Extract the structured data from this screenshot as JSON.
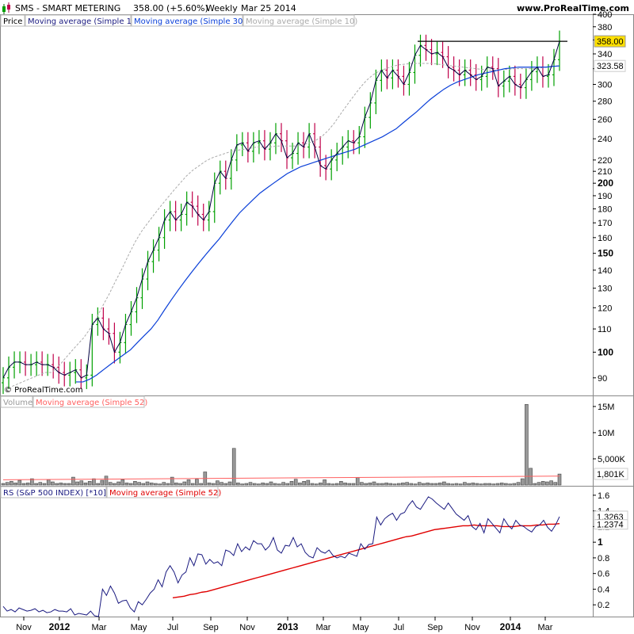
{
  "header": {
    "symbol": "SMS - SMART METERING",
    "last": "358.00 (+5.60%)",
    "period": "Weekly",
    "date": "Mar 25 2014",
    "site": "www.ProRealTime.com",
    "copyright": "© ProRealTime.com"
  },
  "colors": {
    "up_bar": "#00a000",
    "down_bar": "#c0004a",
    "close_line": "#000040",
    "ma30": "#0a3fd8",
    "ma10": "#aaaaaa",
    "volume_ma": "#ff6060",
    "rs_line": "#1a1a80",
    "rs_ma": "#e00000"
  },
  "chart_data": [
    {
      "type": "line",
      "panel": "Price",
      "legend": [
        "Price",
        "Moving average (Simple 1)",
        "Moving average (Simple 30)",
        "Moving average (Simple 10)"
      ],
      "y_scale": "log",
      "ylim": [
        84,
        400
      ],
      "y_ticks": [
        "400",
        "380",
        "360",
        "340",
        "320",
        "300",
        "280",
        "260",
        "240",
        "220",
        "210",
        "200",
        "190",
        "180",
        "170",
        "160",
        "150",
        "140",
        "130",
        "120",
        "110",
        "100",
        "90"
      ],
      "bold_ticks": [
        "200",
        "150",
        "100"
      ],
      "last_price": "358.00",
      "ma30_label": "323.58",
      "resistance_level": 358,
      "x_labels": [
        "Nov",
        "2012",
        "Mar",
        "May",
        "Jul",
        "Sep",
        "Nov",
        "2013",
        "Mar",
        "May",
        "Jul",
        "Sep",
        "Nov",
        "2014",
        "Mar"
      ],
      "close": [
        90,
        94,
        96,
        96,
        95,
        95,
        96,
        95,
        95,
        94,
        92,
        91,
        92,
        93,
        90,
        91,
        112,
        115,
        110,
        108,
        100,
        104,
        112,
        118,
        125,
        135,
        145,
        152,
        160,
        172,
        178,
        172,
        176,
        185,
        182,
        176,
        172,
        178,
        200,
        210,
        204,
        220,
        234,
        236,
        228,
        236,
        238,
        230,
        236,
        245,
        238,
        222,
        226,
        236,
        232,
        245,
        232,
        215,
        212,
        220,
        226,
        232,
        238,
        236,
        242,
        262,
        278,
        305,
        318,
        308,
        318,
        310,
        300,
        315,
        338,
        352,
        346,
        340,
        342,
        336,
        322,
        318,
        312,
        318,
        312,
        306,
        310,
        322,
        320,
        298,
        304,
        310,
        300,
        296,
        306,
        316,
        322,
        310,
        312,
        332,
        358
      ],
      "ma30": [
        88.5,
        88.5,
        89.5,
        91,
        93,
        95,
        97,
        99,
        101,
        104,
        107,
        110,
        114,
        119,
        124,
        129,
        134,
        139,
        144,
        149,
        154,
        159,
        165,
        171,
        177,
        182,
        187,
        192,
        196,
        200,
        204,
        208,
        211,
        214,
        216,
        218,
        220,
        222,
        224,
        226,
        228,
        230,
        233,
        236,
        239,
        242,
        246,
        250,
        256,
        262,
        268,
        275,
        282,
        288,
        294,
        299,
        303,
        306,
        309,
        312,
        314,
        316,
        318,
        320,
        321,
        322,
        322,
        322,
        322,
        322,
        323,
        323.58
      ],
      "ma10": [
        85,
        87,
        88,
        89,
        90,
        91,
        92,
        92,
        94,
        97,
        100,
        103,
        106,
        110,
        115,
        121,
        127,
        134,
        141,
        149,
        157,
        164,
        170,
        176,
        182,
        188,
        194,
        200,
        206,
        211,
        215,
        219,
        222,
        224,
        226,
        228,
        229,
        230,
        231,
        232,
        232,
        232,
        233,
        233,
        233,
        233,
        234,
        236,
        238,
        242,
        248,
        256,
        266,
        276,
        286,
        296,
        305,
        312,
        317,
        320,
        323,
        325,
        326,
        327,
        327,
        327,
        327,
        326,
        325,
        324,
        323,
        322,
        321,
        320,
        319,
        318,
        318,
        319,
        319,
        320,
        320,
        320,
        320,
        321,
        322,
        323,
        324
      ]
    },
    {
      "type": "bar",
      "panel": "Volume",
      "legend": [
        "Volume",
        "Moving average (Simple 52)"
      ],
      "y_ticks": [
        "15M",
        "10M",
        "5,000K"
      ],
      "ylim": [
        0,
        16500000
      ],
      "last_ma": "1,801K",
      "values": [
        300000,
        500000,
        700000,
        400000,
        900000,
        300000,
        400000,
        1200000,
        300000,
        500000,
        300000,
        1000000,
        600000,
        300000,
        400000,
        300000,
        300000,
        1500000,
        600000,
        800000,
        400000,
        700000,
        1200000,
        300000,
        900000,
        1700000,
        500000,
        300000,
        600000,
        1000000,
        400000,
        300000,
        700000,
        500000,
        300000,
        600000,
        400000,
        300000,
        200000,
        500000,
        300000,
        1500000,
        400000,
        300000,
        600000,
        1000000,
        300000,
        1100000,
        300000,
        2500000,
        400000,
        300000,
        800000,
        500000,
        300000,
        600000,
        7000000,
        400000,
        200000,
        300000,
        500000,
        300000,
        200000,
        400000,
        300000,
        600000,
        300000,
        200000,
        500000,
        300000,
        700000,
        1100000,
        400000,
        700000,
        900000,
        300000,
        200000,
        400000,
        1000000,
        300000,
        200000,
        300000,
        700000,
        400000,
        300000,
        300000,
        1400000,
        500000,
        300000,
        400000,
        600000,
        300000,
        300000,
        400000,
        300000,
        200000,
        300000,
        400000,
        500000,
        300000,
        200000,
        500000,
        300000,
        400000,
        300000,
        300000,
        400000,
        600000,
        300000,
        200000,
        300000,
        200000,
        500000,
        300000,
        400000,
        300000,
        200000,
        300000,
        300000,
        200000,
        300000,
        400000,
        300000,
        200000,
        300000,
        500000,
        1200000,
        15400000,
        3200000,
        300000,
        500000,
        700000,
        600000,
        800000,
        500000,
        2100000
      ]
    },
    {
      "type": "line",
      "panel": "RS",
      "legend": [
        "RS (S&P 500 INDEX) [*10]",
        "Moving average (Simple 52)"
      ],
      "y_ticks": [
        "1.6",
        "1.4",
        "1.2",
        "1",
        "0.8",
        "0.6",
        "0.4",
        "0.2"
      ],
      "ylim": [
        0.05,
        1.68
      ],
      "last_rs": "1.3263",
      "last_ma": "1.2374",
      "rs": [
        0.18,
        0.12,
        0.14,
        0.11,
        0.16,
        0.14,
        0.12,
        0.13,
        0.15,
        0.11,
        0.13,
        0.1,
        0.11,
        0.14,
        0.12,
        0.12,
        0.11,
        0.15,
        0.07,
        0.09,
        0.08,
        0.07,
        0.12,
        0.06,
        0.05,
        0.4,
        0.32,
        0.44,
        0.35,
        0.22,
        0.25,
        0.26,
        0.16,
        0.11,
        0.24,
        0.2,
        0.27,
        0.35,
        0.4,
        0.52,
        0.43,
        0.62,
        0.7,
        0.62,
        0.48,
        0.58,
        0.62,
        0.8,
        0.7,
        0.85,
        0.84,
        0.72,
        0.78,
        0.73,
        0.75,
        0.7,
        0.9,
        0.88,
        0.83,
        0.98,
        0.88,
        0.94,
        0.9,
        1.02,
        0.98,
        0.98,
        0.9,
        0.95,
        1.06,
        0.9,
        0.86,
        0.96,
        0.95,
        1.06,
        0.94,
        0.98,
        0.87,
        0.82,
        0.8,
        0.93,
        0.88,
        0.86,
        0.9,
        0.83,
        0.8,
        0.82,
        0.8,
        0.86,
        0.84,
        0.82,
        0.98,
        0.91,
        0.97,
        0.98,
        1.32,
        1.22,
        1.3,
        1.34,
        1.37,
        1.28,
        1.36,
        1.38,
        1.47,
        1.53,
        1.45,
        1.42,
        1.5,
        1.58,
        1.55,
        1.5,
        1.46,
        1.42,
        1.5,
        1.43,
        1.36,
        1.32,
        1.28,
        1.34,
        1.2,
        1.16,
        1.24,
        1.12,
        1.3,
        1.24,
        1.18,
        1.12,
        1.3,
        1.22,
        1.17,
        1.28,
        1.22,
        1.2,
        1.16,
        1.13,
        1.2,
        1.22,
        1.28,
        1.19,
        1.14,
        1.22,
        1.3263
      ],
      "ma": [
        0.29,
        0.3,
        0.31,
        0.33,
        0.34,
        0.36,
        0.37,
        0.39,
        0.41,
        0.43,
        0.45,
        0.47,
        0.49,
        0.51,
        0.53,
        0.55,
        0.57,
        0.59,
        0.61,
        0.63,
        0.65,
        0.67,
        0.69,
        0.71,
        0.73,
        0.75,
        0.77,
        0.79,
        0.81,
        0.83,
        0.85,
        0.87,
        0.89,
        0.91,
        0.93,
        0.95,
        0.97,
        0.99,
        1.01,
        1.03,
        1.05,
        1.07,
        1.08,
        1.1,
        1.12,
        1.14,
        1.16,
        1.17,
        1.18,
        1.19,
        1.2,
        1.21,
        1.21,
        1.22,
        1.21,
        1.21,
        1.21,
        1.21,
        1.2,
        1.2,
        1.2,
        1.21,
        1.21,
        1.21,
        1.22,
        1.22,
        1.23,
        1.23,
        1.2374
      ]
    }
  ]
}
